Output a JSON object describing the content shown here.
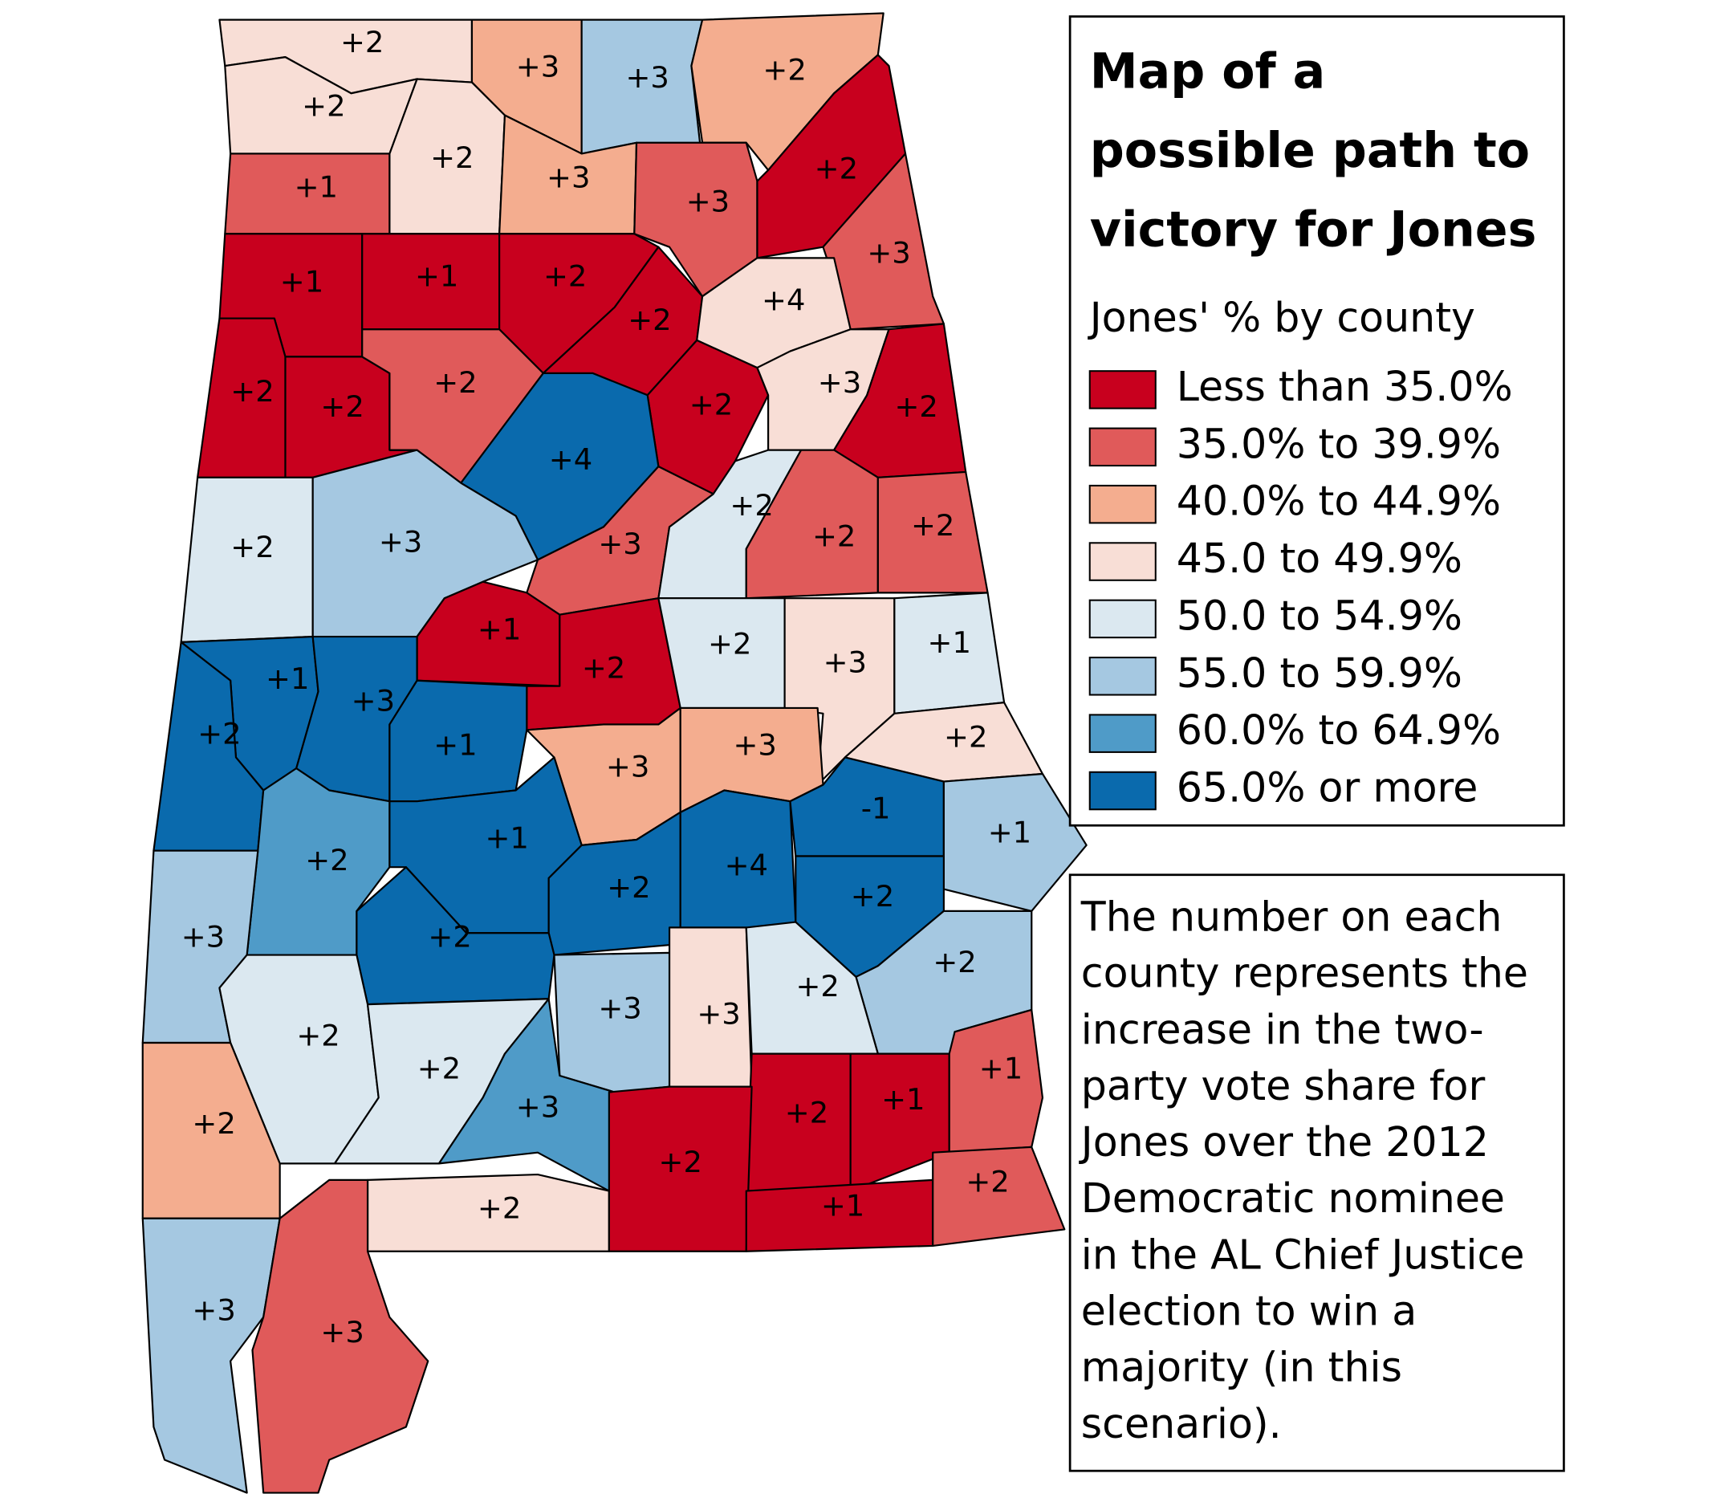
{
  "title_lines": [
    "Map of a",
    "possible path to",
    "victory for Jones"
  ],
  "legend": {
    "title": "Jones' % by county",
    "items": [
      {
        "label": "Less than 35.0%",
        "color": "#c8001e"
      },
      {
        "label": "35.0% to 39.9%",
        "color": "#e05a5a"
      },
      {
        "label": "40.0% to 44.9%",
        "color": "#f4ad8f"
      },
      {
        "label": "45.0 to 49.9%",
        "color": "#f8ded6"
      },
      {
        "label": "50.0 to 54.9%",
        "color": "#dbe8f0"
      },
      {
        "label": "55.0 to 59.9%",
        "color": "#a5c8e1"
      },
      {
        "label": "60.0% to 64.9%",
        "color": "#4f9bc8"
      },
      {
        "label": "65.0% or more",
        "color": "#0a6aad"
      }
    ]
  },
  "note_lines": [
    "The number on each",
    "county represents the",
    "increase in the two-",
    "party vote share for",
    "Jones over the 2012",
    "Democratic nominee",
    "in the AL Chief Justice",
    "election to win a",
    "majority (in this",
    "scenario)."
  ],
  "counties": [
    {
      "label": "+2",
      "category": 3
    },
    {
      "label": "+2",
      "category": 3
    },
    {
      "label": "+3",
      "category": 2
    },
    {
      "label": "+3",
      "category": 5
    },
    {
      "label": "+2",
      "category": 2
    },
    {
      "label": "+1",
      "category": 1
    },
    {
      "label": "+2",
      "category": 3
    },
    {
      "label": "+3",
      "category": 2
    },
    {
      "label": "+3",
      "category": 1
    },
    {
      "label": "+2",
      "category": 0
    },
    {
      "label": "+3",
      "category": 1
    },
    {
      "label": "+1",
      "category": 0
    },
    {
      "label": "+1",
      "category": 0
    },
    {
      "label": "+2",
      "category": 0
    },
    {
      "label": "+2",
      "category": 0
    },
    {
      "label": "+4",
      "category": 3
    },
    {
      "label": "+2",
      "category": 0
    },
    {
      "label": "+2",
      "category": 0
    },
    {
      "label": "+2",
      "category": 1
    },
    {
      "label": "+2",
      "category": 0
    },
    {
      "label": "+3",
      "category": 3
    },
    {
      "label": "+2",
      "category": 0
    },
    {
      "label": "+4",
      "category": 7
    },
    {
      "label": "+2",
      "category": 4
    },
    {
      "label": "+3",
      "category": 5
    },
    {
      "label": "+3",
      "category": 1
    },
    {
      "label": "+2",
      "category": 4
    },
    {
      "label": "+2",
      "category": 1
    },
    {
      "label": "+2",
      "category": 1
    },
    {
      "label": "+1",
      "category": 0
    },
    {
      "label": "+2",
      "category": 0
    },
    {
      "label": "+2",
      "category": 4
    },
    {
      "label": "+3",
      "category": 3
    },
    {
      "label": "+1",
      "category": 4
    },
    {
      "label": "+1",
      "category": 7
    },
    {
      "label": "+3",
      "category": 7
    },
    {
      "label": "+2",
      "category": 7
    },
    {
      "label": "+1",
      "category": 7
    },
    {
      "label": "+3",
      "category": 2
    },
    {
      "label": "+3",
      "category": 2
    },
    {
      "label": "+2",
      "category": 3
    },
    {
      "label": "+2",
      "category": 6
    },
    {
      "label": "+1",
      "category": 7
    },
    {
      "label": "+2",
      "category": 7
    },
    {
      "label": "+4",
      "category": 7
    },
    {
      "label": "-1",
      "category": 7
    },
    {
      "label": "+1",
      "category": 5
    },
    {
      "label": "+2",
      "category": 7
    },
    {
      "label": "+3",
      "category": 5
    },
    {
      "label": "+2",
      "category": 7
    },
    {
      "label": "+2",
      "category": 5
    },
    {
      "label": "+2",
      "category": 4
    },
    {
      "label": "+2",
      "category": 4
    },
    {
      "label": "+3",
      "category": 5
    },
    {
      "label": "+3",
      "category": 3
    },
    {
      "label": "+2",
      "category": 4
    },
    {
      "label": "+2",
      "category": 2
    },
    {
      "label": "+3",
      "category": 6
    },
    {
      "label": "+2",
      "category": 0
    },
    {
      "label": "+1",
      "category": 0
    },
    {
      "label": "+1",
      "category": 1
    },
    {
      "label": "+2",
      "category": 3
    },
    {
      "label": "+2",
      "category": 0
    },
    {
      "label": "+1",
      "category": 0
    },
    {
      "label": "+2",
      "category": 1
    },
    {
      "label": "+3",
      "category": 5
    },
    {
      "label": "+3",
      "category": 1
    }
  ]
}
